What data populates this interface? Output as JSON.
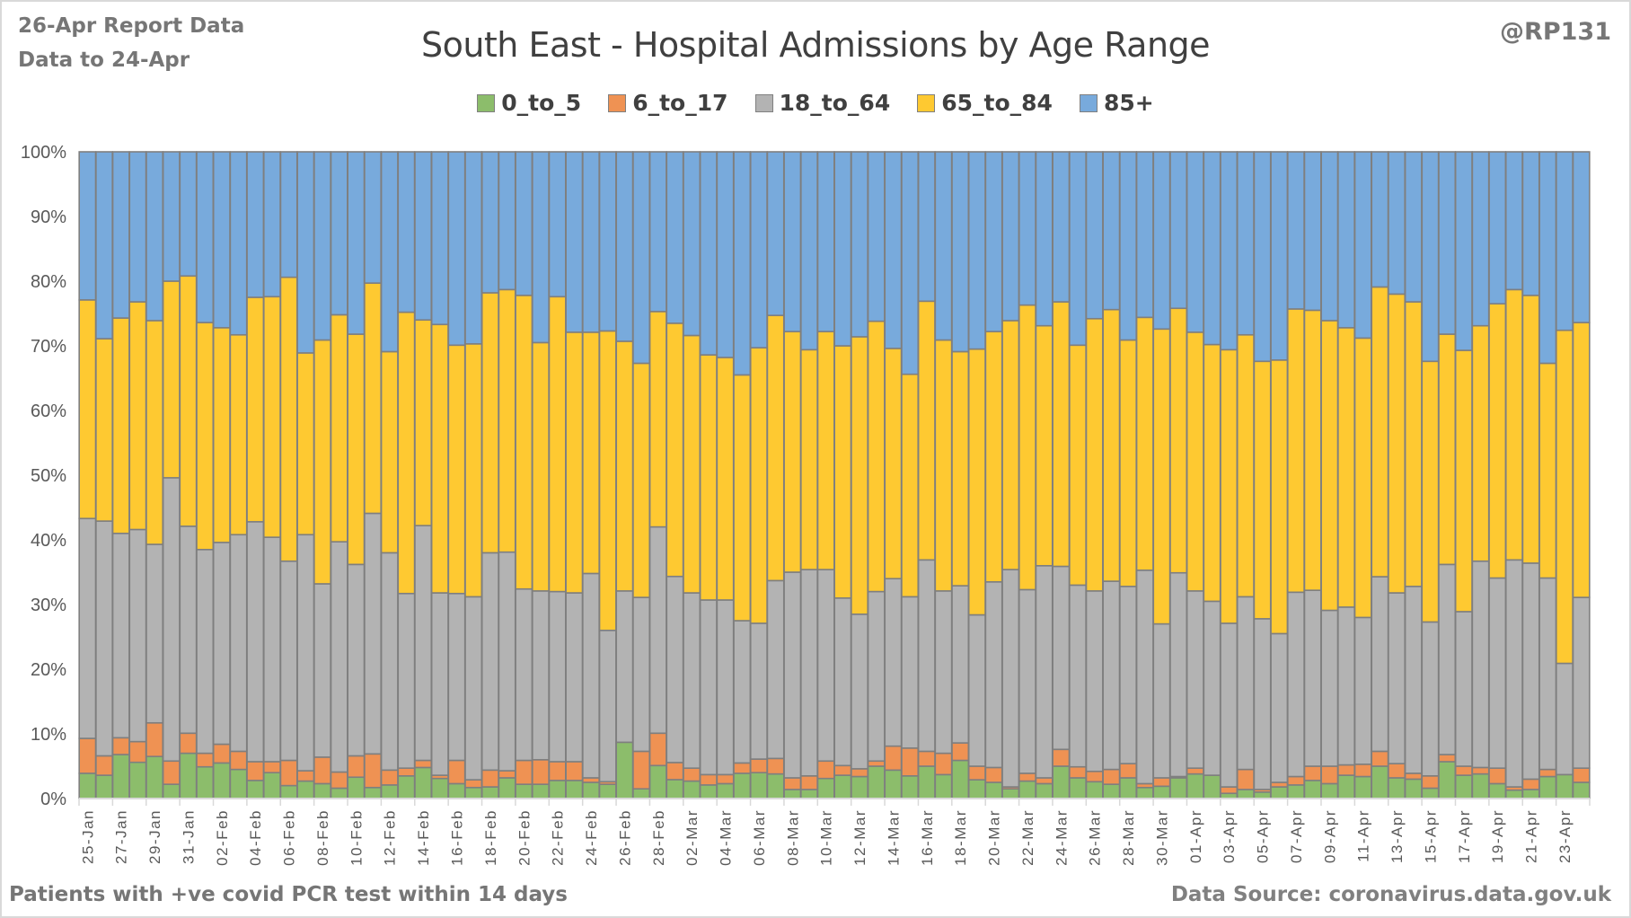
{
  "header": {
    "report_date": "26-Apr Report Data",
    "data_to": "Data to 24-Apr",
    "handle": "@RP131"
  },
  "footer": {
    "note": "Patients with  +ve covid PCR test within 14 days",
    "source": "Data Source: coronavirus.data.gov.uk"
  },
  "chart_data": {
    "type": "bar",
    "stacked": "percent",
    "title": "South East - Hospital Admissions by Age Range",
    "xlabel": "",
    "ylabel": "",
    "ylim": [
      0,
      100
    ],
    "yticks": [
      "0%",
      "10%",
      "20%",
      "30%",
      "40%",
      "50%",
      "60%",
      "70%",
      "80%",
      "90%",
      "100%"
    ],
    "grid": true,
    "legend_position": "top-center",
    "categories": [
      "25-Jan",
      "26-Jan",
      "27-Jan",
      "28-Jan",
      "29-Jan",
      "30-Jan",
      "31-Jan",
      "01-Feb",
      "02-Feb",
      "03-Feb",
      "04-Feb",
      "05-Feb",
      "06-Feb",
      "07-Feb",
      "08-Feb",
      "09-Feb",
      "10-Feb",
      "11-Feb",
      "12-Feb",
      "13-Feb",
      "14-Feb",
      "15-Feb",
      "16-Feb",
      "17-Feb",
      "18-Feb",
      "19-Feb",
      "20-Feb",
      "21-Feb",
      "22-Feb",
      "23-Feb",
      "24-Feb",
      "25-Feb",
      "26-Feb",
      "27-Feb",
      "28-Feb",
      "01-Mar",
      "02-Mar",
      "03-Mar",
      "04-Mar",
      "05-Mar",
      "06-Mar",
      "07-Mar",
      "08-Mar",
      "09-Mar",
      "10-Mar",
      "11-Mar",
      "12-Mar",
      "13-Mar",
      "14-Mar",
      "15-Mar",
      "16-Mar",
      "17-Mar",
      "18-Mar",
      "19-Mar",
      "20-Mar",
      "21-Mar",
      "22-Mar",
      "23-Mar",
      "24-Mar",
      "25-Mar",
      "26-Mar",
      "27-Mar",
      "28-Mar",
      "29-Mar",
      "30-Mar",
      "31-Mar",
      "01-Apr",
      "02-Apr",
      "03-Apr",
      "04-Apr",
      "05-Apr",
      "06-Apr",
      "07-Apr",
      "08-Apr",
      "09-Apr",
      "10-Apr",
      "11-Apr",
      "12-Apr",
      "13-Apr",
      "14-Apr",
      "15-Apr",
      "16-Apr",
      "17-Apr",
      "18-Apr",
      "19-Apr",
      "20-Apr",
      "21-Apr",
      "22-Apr",
      "23-Apr",
      "24-Apr"
    ],
    "shown_tick_labels": [
      "25-Jan",
      "27-Jan",
      "29-Jan",
      "31-Jan",
      "02-Feb",
      "04-Feb",
      "06-Feb",
      "08-Feb",
      "10-Feb",
      "12-Feb",
      "14-Feb",
      "16-Feb",
      "18-Feb",
      "20-Feb",
      "22-Feb",
      "24-Feb",
      "26-Feb",
      "28-Feb",
      "02-Mar",
      "04-Mar",
      "06-Mar",
      "08-Mar",
      "10-Mar",
      "12-Mar",
      "14-Mar",
      "16-Mar",
      "18-Mar",
      "20-Mar",
      "22-Mar",
      "24-Mar",
      "26-Mar",
      "28-Mar",
      "30-Mar",
      "01-Apr",
      "03-Apr",
      "05-Apr",
      "07-Apr",
      "09-Apr",
      "11-Apr",
      "13-Apr",
      "15-Apr",
      "17-Apr",
      "19-Apr",
      "21-Apr",
      "23-Apr"
    ],
    "series": [
      {
        "name": "0_to_5",
        "color": "#8cbd6b",
        "values": [
          3.9,
          3.6,
          6.8,
          5.6,
          6.5,
          2.2,
          7.0,
          4.9,
          5.5,
          4.5,
          2.8,
          4.0,
          2.0,
          2.7,
          2.3,
          1.6,
          3.3,
          1.7,
          2.1,
          3.5,
          4.8,
          3.1,
          2.3,
          1.7,
          1.8,
          3.2,
          2.2,
          2.2,
          2.8,
          2.8,
          2.5,
          2.2,
          8.7,
          1.5,
          5.1,
          3.1,
          2.7,
          2.1,
          2.3,
          3.9,
          4.0,
          3.8,
          1.4,
          1.4,
          3.1,
          3.6,
          3.4,
          5.0,
          4.4,
          3.5,
          5.0,
          3.7,
          5.9,
          2.9,
          2.5,
          1.5,
          2.7,
          2.3,
          5.0,
          3.2,
          2.6,
          2.2,
          3.2,
          1.7,
          1.9,
          3.2,
          3.8,
          3.6,
          0.8,
          1.4,
          1.0,
          1.8,
          2.1,
          2.8,
          2.3,
          3.6,
          3.4,
          5.0,
          3.2,
          3.0,
          1.6,
          5.7,
          3.6,
          3.8,
          2.3,
          1.3,
          1.4,
          3.4,
          3.7,
          2.5
        ]
      },
      {
        "name": "6_to_17",
        "color": "#ef9253",
        "values": [
          5.4,
          3.0,
          2.6,
          3.2,
          5.2,
          3.6,
          3.1,
          2.1,
          2.9,
          2.8,
          2.9,
          1.7,
          3.9,
          1.6,
          4.1,
          2.5,
          3.3,
          5.2,
          2.3,
          1.2,
          1.1,
          0.5,
          3.6,
          1.2,
          2.6,
          1.1,
          3.7,
          3.8,
          2.9,
          2.9,
          0.7,
          0.4,
          0.0,
          5.8,
          5.0,
          2.8,
          2.0,
          1.6,
          1.4,
          1.6,
          2.1,
          2.4,
          1.8,
          2.1,
          2.7,
          1.5,
          1.2,
          0.8,
          3.7,
          4.3,
          2.3,
          3.3,
          2.7,
          2.1,
          2.3,
          0.3,
          1.2,
          0.9,
          2.6,
          1.7,
          1.6,
          2.3,
          2.2,
          0.6,
          1.3,
          0.2,
          0.9,
          0.0,
          1.0,
          3.1,
          0.4,
          0.7,
          1.3,
          2.2,
          2.7,
          1.6,
          1.9,
          2.3,
          2.2,
          0.9,
          1.9,
          1.1,
          1.4,
          1.0,
          2.4,
          0.5,
          1.6,
          1.1,
          0.0,
          2.2
        ]
      },
      {
        "name": "18_to_64",
        "color": "#b3b3b3",
        "values": [
          34.0,
          36.3,
          31.6,
          32.8,
          27.6,
          43.8,
          32.0,
          31.5,
          31.2,
          33.5,
          37.1,
          34.7,
          30.8,
          36.5,
          26.8,
          35.6,
          29.6,
          37.2,
          33.6,
          27.0,
          36.3,
          28.2,
          25.8,
          28.3,
          33.6,
          33.8,
          26.5,
          26.1,
          26.3,
          26.1,
          31.6,
          23.4,
          23.4,
          23.8,
          31.9,
          30.5,
          27.1,
          27.0,
          27.0,
          22.0,
          21.0,
          27.5,
          31.8,
          31.9,
          29.6,
          25.9,
          23.9,
          26.2,
          25.9,
          23.4,
          29.6,
          25.1,
          24.3,
          23.4,
          28.7,
          33.6,
          28.4,
          32.8,
          28.3,
          28.1,
          27.9,
          29.1,
          27.4,
          33.0,
          23.8,
          31.5,
          27.4,
          26.9,
          25.3,
          26.7,
          26.4,
          23.0,
          28.5,
          27.2,
          24.1,
          24.4,
          22.7,
          27.0,
          26.4,
          28.9,
          23.8,
          29.4,
          23.9,
          31.9,
          29.4,
          35.1,
          33.4,
          29.6,
          17.2,
          26.4
        ]
      },
      {
        "name": "65_to_84",
        "color": "#fec931",
        "values": [
          33.8,
          28.2,
          33.3,
          35.2,
          34.6,
          30.4,
          38.7,
          35.1,
          33.2,
          30.9,
          34.7,
          37.2,
          43.9,
          28.1,
          37.7,
          35.1,
          35.6,
          35.6,
          31.1,
          43.5,
          31.8,
          41.5,
          38.4,
          39.1,
          40.2,
          40.6,
          45.4,
          38.4,
          45.6,
          40.3,
          37.3,
          46.3,
          38.6,
          36.2,
          33.3,
          41.5,
          39.8,
          37.9,
          37.5,
          38.0,
          42.6,
          41.0,
          37.2,
          34.0,
          36.8,
          39.0,
          42.9,
          41.8,
          35.6,
          34.4,
          40.0,
          38.8,
          36.2,
          41.1,
          38.7,
          38.5,
          44.0,
          37.1,
          40.9,
          37.1,
          42.1,
          42.0,
          38.1,
          39.1,
          45.6,
          40.9,
          40.0,
          39.7,
          42.3,
          40.5,
          39.8,
          42.3,
          43.8,
          43.3,
          44.8,
          43.2,
          43.2,
          44.8,
          46.2,
          44.0,
          40.3,
          35.6,
          40.4,
          36.4,
          42.4,
          41.8,
          41.4,
          33.2,
          51.5,
          42.5
        ]
      },
      {
        "name": "85+",
        "color": "#78aadc",
        "values": [
          22.9,
          28.9,
          25.7,
          23.2,
          26.1,
          20.0,
          19.2,
          26.4,
          27.2,
          28.3,
          22.5,
          22.4,
          19.4,
          31.1,
          29.1,
          25.2,
          28.2,
          20.3,
          30.9,
          24.8,
          26.0,
          26.7,
          29.9,
          29.7,
          21.8,
          21.3,
          22.2,
          29.5,
          22.4,
          27.9,
          27.9,
          27.7,
          29.3,
          32.7,
          24.7,
          28.1,
          28.4,
          31.4,
          31.8,
          34.5,
          30.3,
          25.3,
          27.8,
          30.6,
          27.8,
          30.0,
          28.6,
          26.2,
          30.4,
          34.4,
          23.1,
          29.1,
          30.9,
          30.5,
          27.8,
          26.1,
          23.7,
          26.9,
          23.2,
          29.9,
          25.8,
          24.4,
          29.1,
          25.6,
          27.4,
          24.2,
          27.9,
          29.8,
          30.6,
          28.3,
          32.4,
          32.2,
          24.3,
          24.5,
          26.1,
          27.2,
          28.8,
          20.9,
          22.0,
          23.2,
          32.4,
          28.2,
          30.7,
          26.9,
          23.5,
          21.3,
          22.2,
          32.7,
          27.6,
          26.4
        ]
      }
    ]
  }
}
